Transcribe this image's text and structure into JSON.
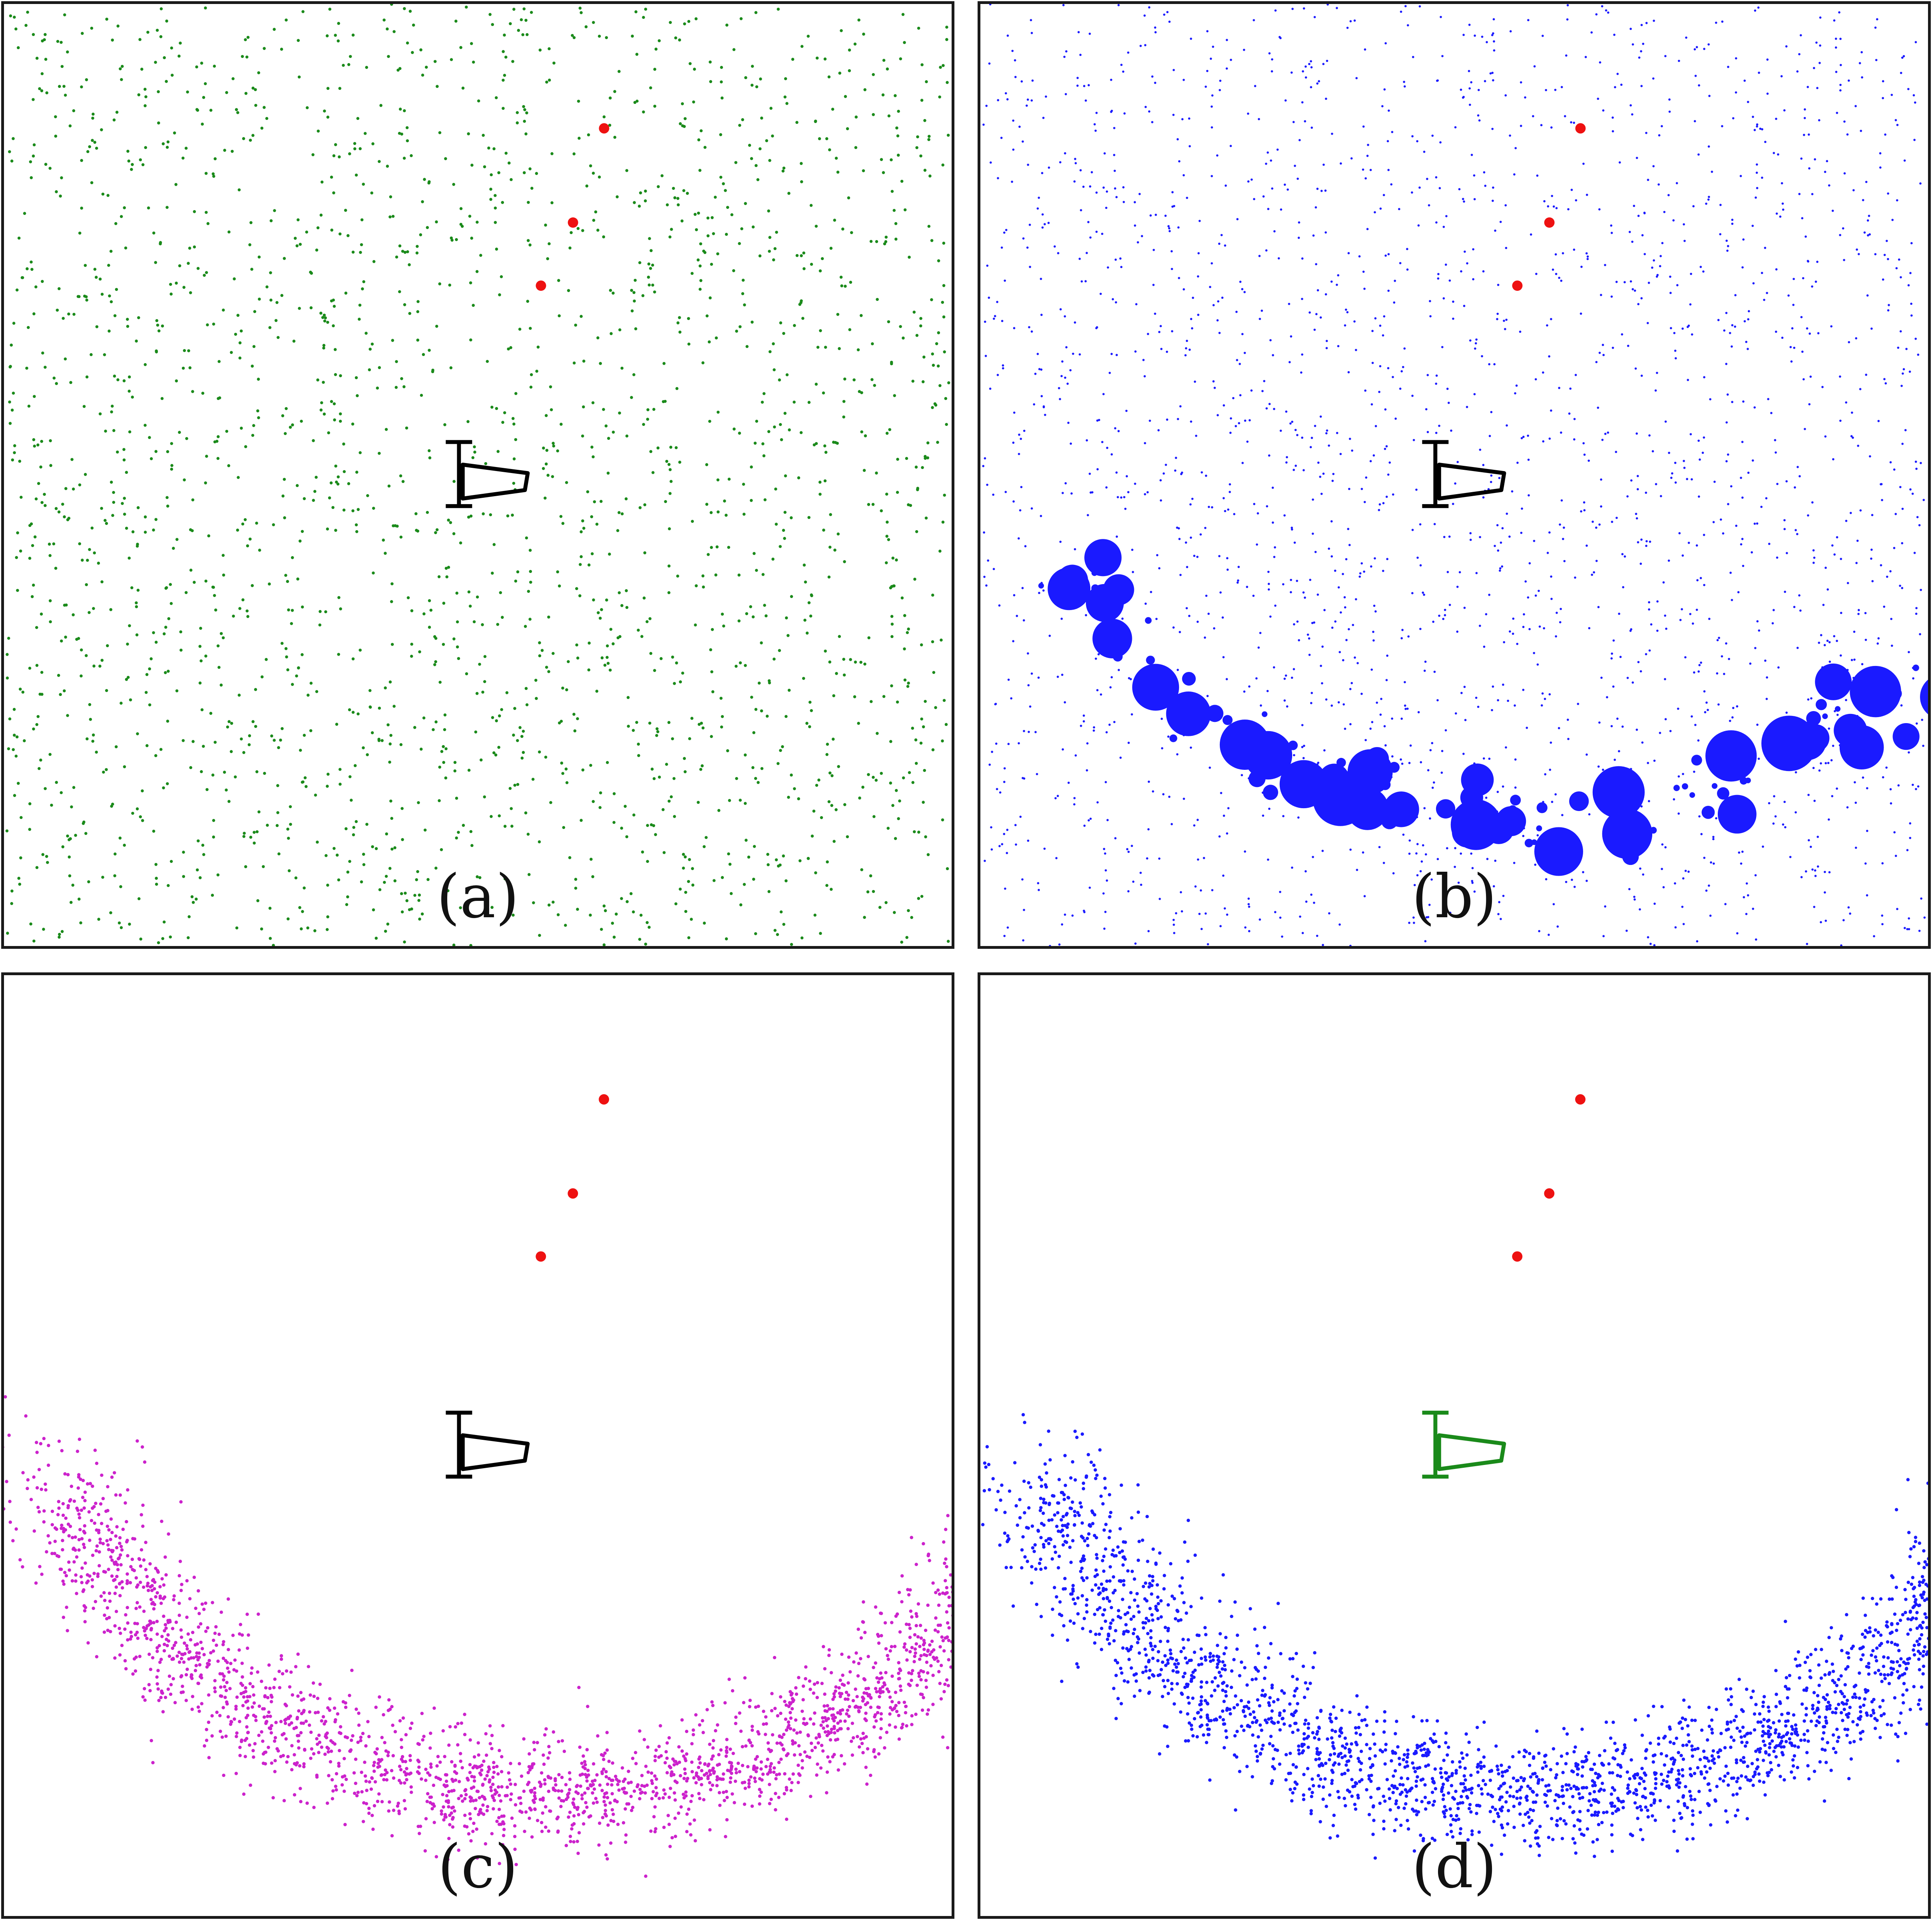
{
  "figure": {
    "panels": [
      {
        "id": "a",
        "label": "(a)",
        "cloud": "uniform",
        "particle_color": "#1a8a1a",
        "robot_color": "#000000"
      },
      {
        "id": "b",
        "label": "(b)",
        "cloud": "uniform-weighted",
        "particle_color": "#1a1aff",
        "robot_color": "#000000"
      },
      {
        "id": "c",
        "label": "(c)",
        "cloud": "arc",
        "particle_color": "#cc22cc",
        "robot_color": "#000000"
      },
      {
        "id": "d",
        "label": "(d)",
        "cloud": "arc",
        "particle_color": "#1a1aff",
        "robot_color": "#1a8a1a"
      }
    ],
    "landmark_color": "#ee1111",
    "landmark_count": 3
  }
}
